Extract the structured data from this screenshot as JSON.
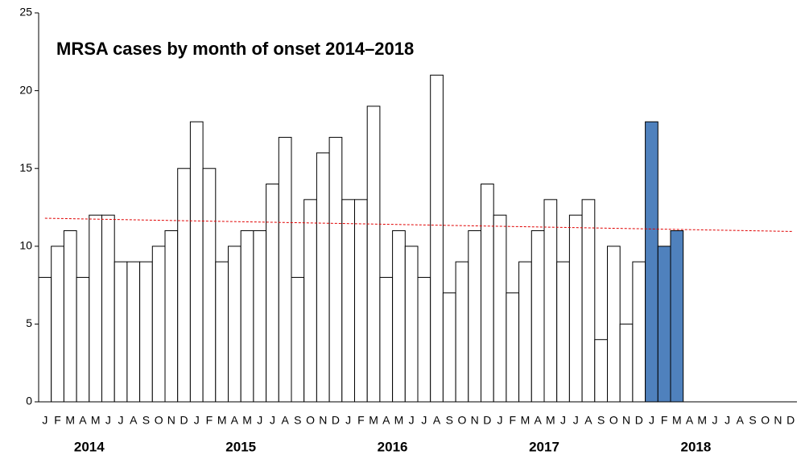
{
  "chart_data": {
    "type": "bar",
    "title": "MRSA cases by month of onset 2014–2018",
    "categories": [
      "J",
      "F",
      "M",
      "A",
      "M",
      "J",
      "J",
      "A",
      "S",
      "O",
      "N",
      "D",
      "J",
      "F",
      "M",
      "A",
      "M",
      "J",
      "J",
      "A",
      "S",
      "O",
      "N",
      "D",
      "J",
      "F",
      "M",
      "A",
      "M",
      "J",
      "J",
      "A",
      "S",
      "O",
      "N",
      "D",
      "J",
      "F",
      "M",
      "A",
      "M",
      "J",
      "J",
      "A",
      "S",
      "O",
      "N",
      "D",
      "J",
      "F",
      "M",
      "A",
      "M",
      "J",
      "J",
      "A",
      "S",
      "O",
      "N",
      "D"
    ],
    "values": [
      8,
      10,
      11,
      8,
      12,
      12,
      9,
      9,
      9,
      10,
      11,
      15,
      18,
      15,
      9,
      10,
      11,
      11,
      14,
      17,
      8,
      13,
      16,
      17,
      13,
      13,
      19,
      8,
      11,
      10,
      8,
      21,
      7,
      9,
      11,
      14,
      12,
      7,
      9,
      11,
      13,
      9,
      12,
      13,
      4,
      10,
      5,
      9,
      18,
      10,
      11,
      null,
      null,
      null,
      null,
      null,
      null,
      null,
      null,
      null
    ],
    "colors": [
      "#ffffff",
      "#ffffff",
      "#ffffff",
      "#ffffff",
      "#ffffff",
      "#ffffff",
      "#ffffff",
      "#ffffff",
      "#ffffff",
      "#ffffff",
      "#ffffff",
      "#ffffff",
      "#ffffff",
      "#ffffff",
      "#ffffff",
      "#ffffff",
      "#ffffff",
      "#ffffff",
      "#ffffff",
      "#ffffff",
      "#ffffff",
      "#ffffff",
      "#ffffff",
      "#ffffff",
      "#ffffff",
      "#ffffff",
      "#ffffff",
      "#ffffff",
      "#ffffff",
      "#ffffff",
      "#ffffff",
      "#ffffff",
      "#ffffff",
      "#ffffff",
      "#ffffff",
      "#ffffff",
      "#ffffff",
      "#ffffff",
      "#ffffff",
      "#ffffff",
      "#ffffff",
      "#ffffff",
      "#ffffff",
      "#ffffff",
      "#ffffff",
      "#ffffff",
      "#ffffff",
      "#ffffff",
      "#4f81bd",
      "#4f81bd",
      "#4f81bd",
      "#4f81bd",
      "#4f81bd",
      "#4f81bd",
      "#4f81bd",
      "#4f81bd",
      "#4f81bd",
      "#4f81bd",
      "#4f81bd",
      "#4f81bd"
    ],
    "years": [
      "2014",
      "2015",
      "2016",
      "2017",
      "2018"
    ],
    "trend": [
      11.8,
      10.95
    ],
    "trend_color": "#e00000",
    "ylim": [
      0,
      25
    ],
    "yticks": [
      0,
      5,
      10,
      15,
      20,
      25
    ],
    "grid": false
  }
}
